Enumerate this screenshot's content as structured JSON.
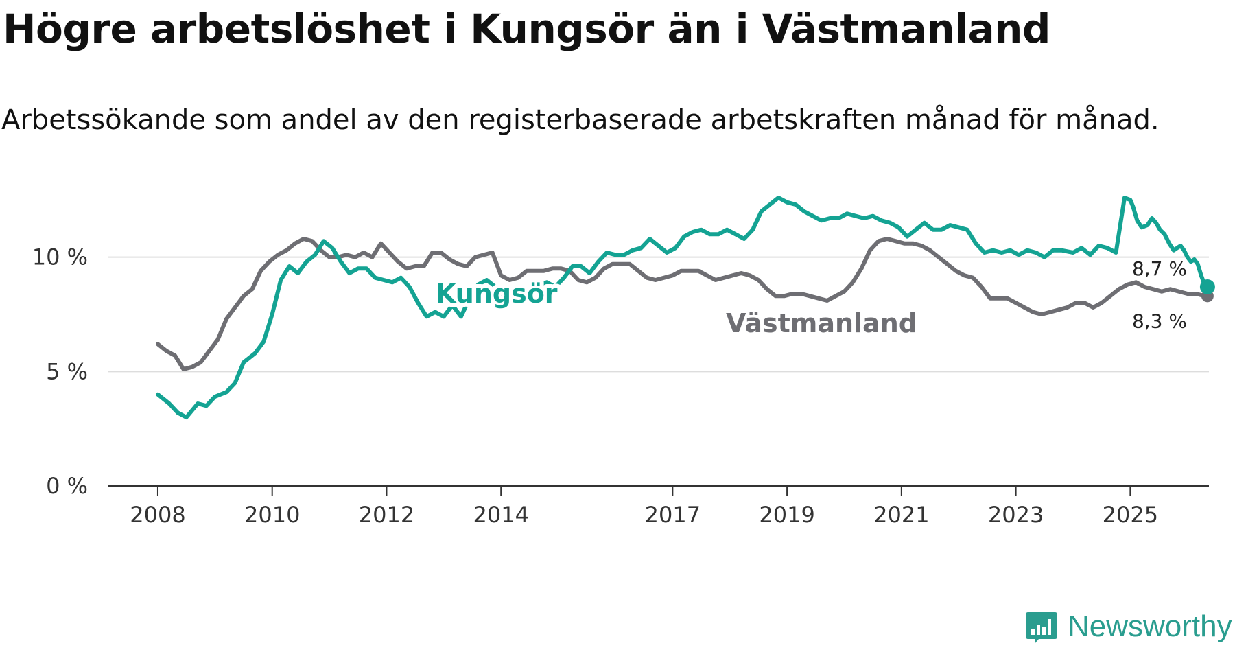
{
  "title": "Högre arbetslöshet i Kungsör än i Västmanland",
  "subtitle": "Arbetssökande som andel av den registerbaserade arbetskraften månad för månad.",
  "logo": {
    "text": "Newsworthy",
    "icon": "newsworthy-logo-icon"
  },
  "colors": {
    "kungsor": "#14a393",
    "vastmanland": "#6e6e73",
    "grid": "#dddddd",
    "axis": "#333333"
  },
  "chart_data": {
    "type": "line",
    "title": "Högre arbetslöshet i Kungsör än i Västmanland",
    "ylim": [
      0,
      12
    ],
    "y_ticks": [
      0,
      5,
      10
    ],
    "y_tick_labels": [
      "0 %",
      "5 %",
      "10 %"
    ],
    "x_ticks": [
      2008,
      2010,
      2012,
      2014,
      2017,
      2019,
      2021,
      2023,
      2025
    ],
    "x_tick_labels": [
      "2008",
      "2010",
      "2012",
      "2014",
      "2017",
      "2019",
      "2021",
      "2023",
      "2025"
    ],
    "x_range": [
      2007.125,
      2026.375
    ],
    "grid": true,
    "series": [
      {
        "name": "Kungsör",
        "end_label": "8,7 %",
        "points": [
          [
            2008.0,
            4.0
          ],
          [
            2008.2,
            3.6
          ],
          [
            2008.35,
            3.2
          ],
          [
            2008.5,
            3.0
          ],
          [
            2008.7,
            3.6
          ],
          [
            2008.85,
            3.5
          ],
          [
            2009.0,
            3.9
          ],
          [
            2009.2,
            4.1
          ],
          [
            2009.35,
            4.5
          ],
          [
            2009.5,
            5.4
          ],
          [
            2009.7,
            5.8
          ],
          [
            2009.85,
            6.3
          ],
          [
            2010.0,
            7.5
          ],
          [
            2010.15,
            9.0
          ],
          [
            2010.3,
            9.6
          ],
          [
            2010.45,
            9.3
          ],
          [
            2010.6,
            9.8
          ],
          [
            2010.75,
            10.1
          ],
          [
            2010.9,
            10.7
          ],
          [
            2011.05,
            10.4
          ],
          [
            2011.2,
            9.8
          ],
          [
            2011.35,
            9.3
          ],
          [
            2011.5,
            9.5
          ],
          [
            2011.65,
            9.5
          ],
          [
            2011.8,
            9.1
          ],
          [
            2011.95,
            9.0
          ],
          [
            2012.1,
            8.9
          ],
          [
            2012.25,
            9.1
          ],
          [
            2012.4,
            8.7
          ],
          [
            2012.55,
            8.0
          ],
          [
            2012.7,
            7.4
          ],
          [
            2012.85,
            7.6
          ],
          [
            2013.0,
            7.4
          ],
          [
            2013.15,
            7.9
          ],
          [
            2013.3,
            7.4
          ],
          [
            2013.45,
            8.2
          ],
          [
            2013.6,
            8.8
          ],
          [
            2013.75,
            9.0
          ],
          [
            2013.9,
            8.7
          ],
          [
            2014.05,
            8.1
          ],
          [
            2014.2,
            8.4
          ],
          [
            2014.35,
            8.2
          ],
          [
            2014.5,
            8.5
          ],
          [
            2014.65,
            8.7
          ],
          [
            2014.8,
            8.9
          ],
          [
            2014.95,
            8.7
          ],
          [
            2015.1,
            9.1
          ],
          [
            2015.25,
            9.6
          ],
          [
            2015.4,
            9.6
          ],
          [
            2015.55,
            9.3
          ],
          [
            2015.7,
            9.8
          ],
          [
            2015.85,
            10.2
          ],
          [
            2016.0,
            10.1
          ],
          [
            2016.15,
            10.1
          ],
          [
            2016.3,
            10.3
          ],
          [
            2016.45,
            10.4
          ],
          [
            2016.6,
            10.8
          ],
          [
            2016.75,
            10.5
          ],
          [
            2016.9,
            10.2
          ],
          [
            2017.05,
            10.4
          ],
          [
            2017.2,
            10.9
          ],
          [
            2017.35,
            11.1
          ],
          [
            2017.5,
            11.2
          ],
          [
            2017.65,
            11.0
          ],
          [
            2017.8,
            11.0
          ],
          [
            2017.95,
            11.2
          ],
          [
            2018.1,
            11.0
          ],
          [
            2018.25,
            10.8
          ],
          [
            2018.4,
            11.2
          ],
          [
            2018.55,
            12.0
          ],
          [
            2018.7,
            12.3
          ],
          [
            2018.85,
            12.6
          ],
          [
            2019.0,
            12.4
          ],
          [
            2019.15,
            12.3
          ],
          [
            2019.3,
            12.0
          ],
          [
            2019.45,
            11.8
          ],
          [
            2019.6,
            11.6
          ],
          [
            2019.75,
            11.7
          ],
          [
            2019.9,
            11.7
          ],
          [
            2020.05,
            11.9
          ],
          [
            2020.2,
            11.8
          ],
          [
            2020.35,
            11.7
          ],
          [
            2020.5,
            11.8
          ],
          [
            2020.65,
            11.6
          ],
          [
            2020.8,
            11.5
          ],
          [
            2020.95,
            11.3
          ],
          [
            2021.1,
            10.9
          ],
          [
            2021.25,
            11.2
          ],
          [
            2021.4,
            11.5
          ],
          [
            2021.55,
            11.2
          ],
          [
            2021.7,
            11.2
          ],
          [
            2021.85,
            11.4
          ],
          [
            2022.0,
            11.3
          ],
          [
            2022.15,
            11.2
          ],
          [
            2022.3,
            10.6
          ],
          [
            2022.45,
            10.2
          ],
          [
            2022.6,
            10.3
          ],
          [
            2022.75,
            10.2
          ],
          [
            2022.9,
            10.3
          ],
          [
            2023.05,
            10.1
          ],
          [
            2023.2,
            10.3
          ],
          [
            2023.35,
            10.2
          ],
          [
            2023.5,
            10.0
          ],
          [
            2023.65,
            10.3
          ],
          [
            2023.8,
            10.3
          ],
          [
            2024.0,
            10.2
          ],
          [
            2024.15,
            10.4
          ],
          [
            2024.3,
            10.1
          ],
          [
            2024.45,
            10.5
          ],
          [
            2024.6,
            10.4
          ],
          [
            2024.75,
            10.2
          ],
          [
            2024.9,
            12.6
          ],
          [
            2025.0,
            12.5
          ],
          [
            2025.05,
            12.2
          ],
          [
            2025.12,
            11.6
          ],
          [
            2025.2,
            11.3
          ],
          [
            2025.3,
            11.4
          ],
          [
            2025.38,
            11.7
          ],
          [
            2025.45,
            11.5
          ],
          [
            2025.52,
            11.2
          ],
          [
            2025.6,
            11.0
          ],
          [
            2025.68,
            10.6
          ],
          [
            2025.76,
            10.3
          ],
          [
            2025.82,
            10.4
          ],
          [
            2025.88,
            10.5
          ],
          [
            2025.94,
            10.3
          ],
          [
            2026.0,
            10.0
          ],
          [
            2026.06,
            9.8
          ],
          [
            2026.12,
            9.9
          ],
          [
            2026.18,
            9.7
          ],
          [
            2026.24,
            9.2
          ],
          [
            2026.3,
            8.8
          ],
          [
            2026.35,
            8.7
          ]
        ]
      },
      {
        "name": "Västmanland",
        "end_label": "8,3 %",
        "points": [
          [
            2008.0,
            6.2
          ],
          [
            2008.15,
            5.9
          ],
          [
            2008.3,
            5.7
          ],
          [
            2008.45,
            5.1
          ],
          [
            2008.6,
            5.2
          ],
          [
            2008.75,
            5.4
          ],
          [
            2008.9,
            5.9
          ],
          [
            2009.05,
            6.4
          ],
          [
            2009.2,
            7.3
          ],
          [
            2009.35,
            7.8
          ],
          [
            2009.5,
            8.3
          ],
          [
            2009.65,
            8.6
          ],
          [
            2009.8,
            9.4
          ],
          [
            2009.95,
            9.8
          ],
          [
            2010.1,
            10.1
          ],
          [
            2010.25,
            10.3
          ],
          [
            2010.4,
            10.6
          ],
          [
            2010.55,
            10.8
          ],
          [
            2010.7,
            10.7
          ],
          [
            2010.85,
            10.3
          ],
          [
            2011.0,
            10.0
          ],
          [
            2011.15,
            10.0
          ],
          [
            2011.3,
            10.1
          ],
          [
            2011.45,
            10.0
          ],
          [
            2011.6,
            10.2
          ],
          [
            2011.75,
            10.0
          ],
          [
            2011.9,
            10.6
          ],
          [
            2012.05,
            10.2
          ],
          [
            2012.2,
            9.8
          ],
          [
            2012.35,
            9.5
          ],
          [
            2012.5,
            9.6
          ],
          [
            2012.65,
            9.6
          ],
          [
            2012.8,
            10.2
          ],
          [
            2012.95,
            10.2
          ],
          [
            2013.1,
            9.9
          ],
          [
            2013.25,
            9.7
          ],
          [
            2013.4,
            9.6
          ],
          [
            2013.55,
            10.0
          ],
          [
            2013.7,
            10.1
          ],
          [
            2013.85,
            10.2
          ],
          [
            2014.0,
            9.2
          ],
          [
            2014.15,
            9.0
          ],
          [
            2014.3,
            9.1
          ],
          [
            2014.45,
            9.4
          ],
          [
            2014.6,
            9.4
          ],
          [
            2014.75,
            9.4
          ],
          [
            2014.9,
            9.5
          ],
          [
            2015.05,
            9.5
          ],
          [
            2015.2,
            9.4
          ],
          [
            2015.35,
            9.0
          ],
          [
            2015.5,
            8.9
          ],
          [
            2015.65,
            9.1
          ],
          [
            2015.8,
            9.5
          ],
          [
            2015.95,
            9.7
          ],
          [
            2016.1,
            9.7
          ],
          [
            2016.25,
            9.7
          ],
          [
            2016.4,
            9.4
          ],
          [
            2016.55,
            9.1
          ],
          [
            2016.7,
            9.0
          ],
          [
            2016.85,
            9.1
          ],
          [
            2017.0,
            9.2
          ],
          [
            2017.15,
            9.4
          ],
          [
            2017.3,
            9.4
          ],
          [
            2017.45,
            9.4
          ],
          [
            2017.6,
            9.2
          ],
          [
            2017.75,
            9.0
          ],
          [
            2017.9,
            9.1
          ],
          [
            2018.05,
            9.2
          ],
          [
            2018.2,
            9.3
          ],
          [
            2018.35,
            9.2
          ],
          [
            2018.5,
            9.0
          ],
          [
            2018.65,
            8.6
          ],
          [
            2018.8,
            8.3
          ],
          [
            2018.95,
            8.3
          ],
          [
            2019.1,
            8.4
          ],
          [
            2019.25,
            8.4
          ],
          [
            2019.4,
            8.3
          ],
          [
            2019.55,
            8.2
          ],
          [
            2019.7,
            8.1
          ],
          [
            2019.85,
            8.3
          ],
          [
            2020.0,
            8.5
          ],
          [
            2020.15,
            8.9
          ],
          [
            2020.3,
            9.5
          ],
          [
            2020.45,
            10.3
          ],
          [
            2020.6,
            10.7
          ],
          [
            2020.75,
            10.8
          ],
          [
            2020.9,
            10.7
          ],
          [
            2021.05,
            10.6
          ],
          [
            2021.2,
            10.6
          ],
          [
            2021.35,
            10.5
          ],
          [
            2021.5,
            10.3
          ],
          [
            2021.65,
            10.0
          ],
          [
            2021.8,
            9.7
          ],
          [
            2021.95,
            9.4
          ],
          [
            2022.1,
            9.2
          ],
          [
            2022.25,
            9.1
          ],
          [
            2022.4,
            8.7
          ],
          [
            2022.55,
            8.2
          ],
          [
            2022.7,
            8.2
          ],
          [
            2022.85,
            8.2
          ],
          [
            2023.0,
            8.0
          ],
          [
            2023.15,
            7.8
          ],
          [
            2023.3,
            7.6
          ],
          [
            2023.45,
            7.5
          ],
          [
            2023.6,
            7.6
          ],
          [
            2023.75,
            7.7
          ],
          [
            2023.9,
            7.8
          ],
          [
            2024.05,
            8.0
          ],
          [
            2024.2,
            8.0
          ],
          [
            2024.35,
            7.8
          ],
          [
            2024.5,
            8.0
          ],
          [
            2024.65,
            8.3
          ],
          [
            2024.8,
            8.6
          ],
          [
            2024.95,
            8.8
          ],
          [
            2025.1,
            8.9
          ],
          [
            2025.25,
            8.7
          ],
          [
            2025.4,
            8.6
          ],
          [
            2025.55,
            8.5
          ],
          [
            2025.7,
            8.6
          ],
          [
            2025.85,
            8.5
          ],
          [
            2026.0,
            8.4
          ],
          [
            2026.15,
            8.4
          ],
          [
            2026.3,
            8.3
          ],
          [
            2026.35,
            8.3
          ]
        ]
      }
    ]
  }
}
